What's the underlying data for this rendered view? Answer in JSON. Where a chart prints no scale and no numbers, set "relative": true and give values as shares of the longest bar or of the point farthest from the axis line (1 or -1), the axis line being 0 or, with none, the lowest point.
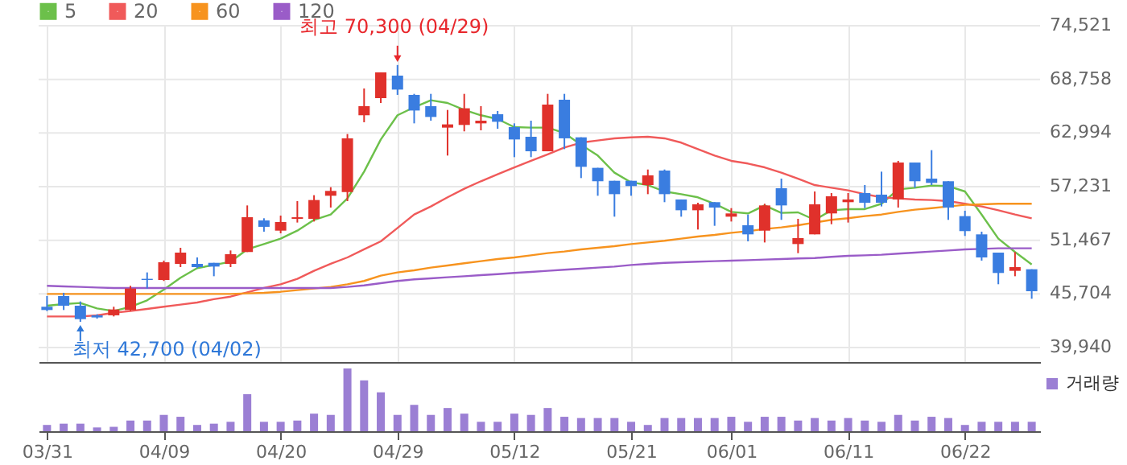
{
  "chart_data": [
    {
      "type": "candlestick",
      "categories": [
        "03/31",
        null,
        null,
        null,
        null,
        null,
        null,
        "04/09",
        null,
        null,
        null,
        null,
        null,
        null,
        "04/20",
        null,
        null,
        null,
        null,
        null,
        null,
        "04/29",
        null,
        null,
        null,
        null,
        null,
        null,
        "05/12",
        null,
        null,
        null,
        null,
        null,
        null,
        "05/21",
        null,
        null,
        null,
        null,
        null,
        "06/01",
        null,
        null,
        null,
        null,
        null,
        null,
        "06/11",
        null,
        null,
        null,
        null,
        null,
        null,
        "06/22",
        null,
        null,
        null,
        null
      ],
      "ohlc": [
        [
          44320,
          45470,
          43860,
          43970
        ],
        [
          45470,
          45820,
          43970,
          44430
        ],
        [
          44430,
          44890,
          42700,
          42990
        ],
        [
          43400,
          43510,
          43050,
          43170
        ],
        [
          43400,
          44320,
          43280,
          44030
        ],
        [
          43970,
          46570,
          43860,
          46280
        ],
        [
          47320,
          48010,
          46280,
          47200
        ],
        [
          47200,
          49280,
          47090,
          49100
        ],
        [
          48930,
          50660,
          48580,
          50140
        ],
        [
          48930,
          49620,
          48470,
          48580
        ],
        [
          49040,
          49040,
          47600,
          48640
        ],
        [
          48930,
          50370,
          48580,
          49970
        ],
        [
          50200,
          55210,
          50200,
          53940
        ],
        [
          53600,
          53830,
          52390,
          52910
        ],
        [
          52500,
          54120,
          52210,
          53430
        ],
        [
          53770,
          55670,
          53370,
          53940
        ],
        [
          53770,
          56310,
          53480,
          55790
        ],
        [
          56250,
          57170,
          54980,
          56770
        ],
        [
          56650,
          62880,
          55670,
          62420
        ],
        [
          64900,
          67780,
          64150,
          65880
        ],
        [
          66740,
          69510,
          66220,
          69510
        ],
        [
          69160,
          70300,
          67090,
          67660
        ],
        [
          67090,
          67200,
          64030,
          65410
        ],
        [
          65880,
          67200,
          64320,
          64720
        ],
        [
          63570,
          65470,
          60570,
          63920
        ],
        [
          63860,
          67200,
          63170,
          65650
        ],
        [
          64030,
          65880,
          63280,
          64320
        ],
        [
          65010,
          65360,
          63450,
          64200
        ],
        [
          63630,
          64030,
          60400,
          62300
        ],
        [
          62590,
          64320,
          60400,
          61030
        ],
        [
          61030,
          67200,
          61030,
          66050
        ],
        [
          66570,
          67200,
          61260,
          62420
        ],
        [
          62530,
          62530,
          58150,
          59360
        ],
        [
          59250,
          59250,
          56250,
          57810
        ],
        [
          57860,
          57860,
          54000,
          56420
        ],
        [
          57860,
          57860,
          56250,
          57290
        ],
        [
          57400,
          59070,
          56420,
          58440
        ],
        [
          58960,
          59070,
          55560,
          56420
        ],
        [
          55850,
          55850,
          54000,
          54690
        ],
        [
          54690,
          55500,
          52620,
          55330
        ],
        [
          55560,
          55560,
          53020,
          54980
        ],
        [
          54000,
          54920,
          53480,
          54350
        ],
        [
          53080,
          54230,
          51350,
          52100
        ],
        [
          52500,
          55390,
          51230,
          55210
        ],
        [
          57060,
          58090,
          53660,
          55210
        ],
        [
          51060,
          53770,
          50080,
          51700
        ],
        [
          52100,
          56710,
          52100,
          55330
        ],
        [
          54350,
          56540,
          53190,
          56190
        ],
        [
          55560,
          56540,
          53370,
          55850
        ],
        [
          56540,
          57400,
          54920,
          55500
        ],
        [
          56370,
          58840,
          55100,
          55500
        ],
        [
          55850,
          60000,
          54980,
          59820
        ],
        [
          59820,
          59820,
          57110,
          57810
        ],
        [
          58090,
          61150,
          57400,
          57630
        ],
        [
          57810,
          57810,
          53660,
          54980
        ],
        [
          54060,
          54640,
          51930,
          52450
        ],
        [
          52100,
          52390,
          49280,
          49620
        ],
        [
          50140,
          50140,
          46740,
          47950
        ],
        [
          48180,
          50200,
          47600,
          48580
        ],
        [
          48350,
          48350,
          45180,
          45990
        ]
      ],
      "colors": [
        "#3a7de0",
        "#3a7de0",
        "#3a7de0",
        "#3a7de0",
        "#e0312b",
        "#e0312b",
        "#3a7de0",
        "#e0312b",
        "#e0312b",
        "#3a7de0",
        "#3a7de0",
        "#e0312b",
        "#e0312b",
        "#3a7de0",
        "#e0312b",
        "#e0312b",
        "#e0312b",
        "#e0312b",
        "#e0312b",
        "#e0312b",
        "#e0312b",
        "#3a7de0",
        "#3a7de0",
        "#3a7de0",
        "#e0312b",
        "#e0312b",
        "#e0312b",
        "#3a7de0",
        "#3a7de0",
        "#3a7de0",
        "#e0312b",
        "#3a7de0",
        "#3a7de0",
        "#3a7de0",
        "#3a7de0",
        "#3a7de0",
        "#e0312b",
        "#3a7de0",
        "#3a7de0",
        "#e0312b",
        "#3a7de0",
        "#e0312b",
        "#3a7de0",
        "#e0312b",
        "#3a7de0",
        "#e0312b",
        "#e0312b",
        "#e0312b",
        "#e0312b",
        "#3a7de0",
        "#3a7de0",
        "#e0312b",
        "#3a7de0",
        "#3a7de0",
        "#3a7de0",
        "#3a7de0",
        "#3a7de0",
        "#3a7de0",
        "#e0312b",
        "#3a7de0"
      ],
      "series": [
        {
          "name": "5",
          "type": "line",
          "color": "#6cc04a",
          "values": [
            44430,
            44610,
            44720,
            44140,
            43860,
            44320,
            45010,
            46160,
            47430,
            48470,
            48810,
            49160,
            50490,
            51060,
            51640,
            52500,
            53660,
            54230,
            55960,
            58840,
            62300,
            64900,
            65760,
            66510,
            66220,
            65470,
            64900,
            64490,
            63630,
            63570,
            63570,
            62990,
            61730,
            60570,
            58730,
            57690,
            57400,
            56710,
            56420,
            56080,
            55390,
            54520,
            54350,
            55210,
            54410,
            54460,
            53660,
            54690,
            54810,
            54810,
            55390,
            56940,
            57110,
            57350,
            57290,
            56710,
            54230,
            51640,
            50200,
            48870
          ]
        },
        {
          "name": "20",
          "type": "line",
          "color": "#f05a5a",
          "values": [
            43280,
            43280,
            43280,
            43400,
            43680,
            43860,
            44090,
            44320,
            44550,
            44780,
            45130,
            45410,
            45870,
            46340,
            46740,
            47320,
            48180,
            48930,
            49620,
            50490,
            51350,
            52790,
            54230,
            55100,
            56080,
            57000,
            57810,
            58560,
            59300,
            60000,
            60690,
            61440,
            61960,
            62190,
            62420,
            62530,
            62590,
            62420,
            61960,
            61260,
            60570,
            60000,
            59710,
            59300,
            58730,
            58090,
            57400,
            57110,
            56830,
            56420,
            56080,
            55960,
            55850,
            55790,
            55670,
            55390,
            55100,
            54690,
            54230,
            53830
          ]
        },
        {
          "name": "60",
          "type": "line",
          "color": "#f7931e",
          "values": [
            45700,
            45700,
            45700,
            45700,
            45700,
            45700,
            45700,
            45700,
            45700,
            45700,
            45700,
            45700,
            45760,
            45820,
            45930,
            46110,
            46280,
            46450,
            46740,
            47090,
            47660,
            48010,
            48240,
            48530,
            48760,
            48990,
            49220,
            49450,
            49620,
            49850,
            50080,
            50260,
            50490,
            50660,
            50830,
            51060,
            51230,
            51410,
            51640,
            51870,
            52040,
            52270,
            52440,
            52680,
            52850,
            53080,
            53370,
            53660,
            53830,
            54060,
            54230,
            54520,
            54750,
            54920,
            55100,
            55270,
            55330,
            55390,
            55390,
            55390
          ]
        },
        {
          "name": "120",
          "type": "line",
          "color": "#9a5cc8",
          "values": [
            46570,
            46510,
            46450,
            46390,
            46340,
            46340,
            46340,
            46340,
            46340,
            46340,
            46340,
            46340,
            46340,
            46340,
            46340,
            46340,
            46340,
            46340,
            46450,
            46620,
            46850,
            47090,
            47260,
            47370,
            47490,
            47600,
            47720,
            47830,
            47950,
            48060,
            48180,
            48300,
            48410,
            48530,
            48640,
            48810,
            48930,
            49040,
            49100,
            49160,
            49220,
            49280,
            49330,
            49390,
            49450,
            49510,
            49560,
            49680,
            49790,
            49850,
            49910,
            50030,
            50140,
            50260,
            50370,
            50490,
            50540,
            50600,
            50600,
            50600
          ]
        }
      ],
      "ylim": [
        38380,
        74521
      ],
      "yticks": [
        {
          "value": 39940,
          "label": "39,940"
        },
        {
          "value": 45704,
          "label": "45,704"
        },
        {
          "value": 51467,
          "label": "51,467"
        },
        {
          "value": 57231,
          "label": "57,231"
        },
        {
          "value": 62994,
          "label": "62,994"
        },
        {
          "value": 68758,
          "label": "68,758"
        },
        {
          "value": 74521,
          "label": "74,521"
        }
      ],
      "grid": true,
      "legend": "top left",
      "tick_labels": "y",
      "annotations": [
        "최고 70,300 (04/29)",
        "최저 42,700 (04/02)"
      ]
    },
    {
      "type": "bar",
      "relative": true,
      "categories": [
        "03/31",
        null,
        null,
        null,
        null,
        null,
        null,
        "04/09",
        null,
        null,
        null,
        null,
        null,
        null,
        "04/20",
        null,
        null,
        null,
        null,
        null,
        null,
        "04/29",
        null,
        null,
        null,
        null,
        null,
        null,
        "05/12",
        null,
        null,
        null,
        null,
        null,
        null,
        "05/21",
        null,
        null,
        null,
        null,
        null,
        "06/01",
        null,
        null,
        null,
        null,
        null,
        null,
        "06/11",
        null,
        null,
        null,
        null,
        null,
        null,
        "06/22",
        null,
        null,
        null,
        null
      ],
      "series": [
        {
          "name": "거래량",
          "color": "#9b7fd4",
          "values": [
            0.1,
            0.12,
            0.12,
            0.06,
            0.07,
            0.17,
            0.17,
            0.26,
            0.23,
            0.1,
            0.12,
            0.15,
            0.59,
            0.15,
            0.15,
            0.17,
            0.28,
            0.26,
            1,
            0.81,
            0.62,
            0.26,
            0.42,
            0.26,
            0.37,
            0.28,
            0.15,
            0.15,
            0.28,
            0.26,
            0.37,
            0.23,
            0.21,
            0.21,
            0.21,
            0.15,
            0.1,
            0.21,
            0.21,
            0.21,
            0.21,
            0.23,
            0.15,
            0.23,
            0.23,
            0.17,
            0.21,
            0.17,
            0.21,
            0.17,
            0.15,
            0.26,
            0.17,
            0.23,
            0.21,
            0.1,
            0.15,
            0.15,
            0.15,
            0.15
          ]
        }
      ],
      "legend": "top right",
      "tick_labels": "x",
      "grid": false
    }
  ]
}
